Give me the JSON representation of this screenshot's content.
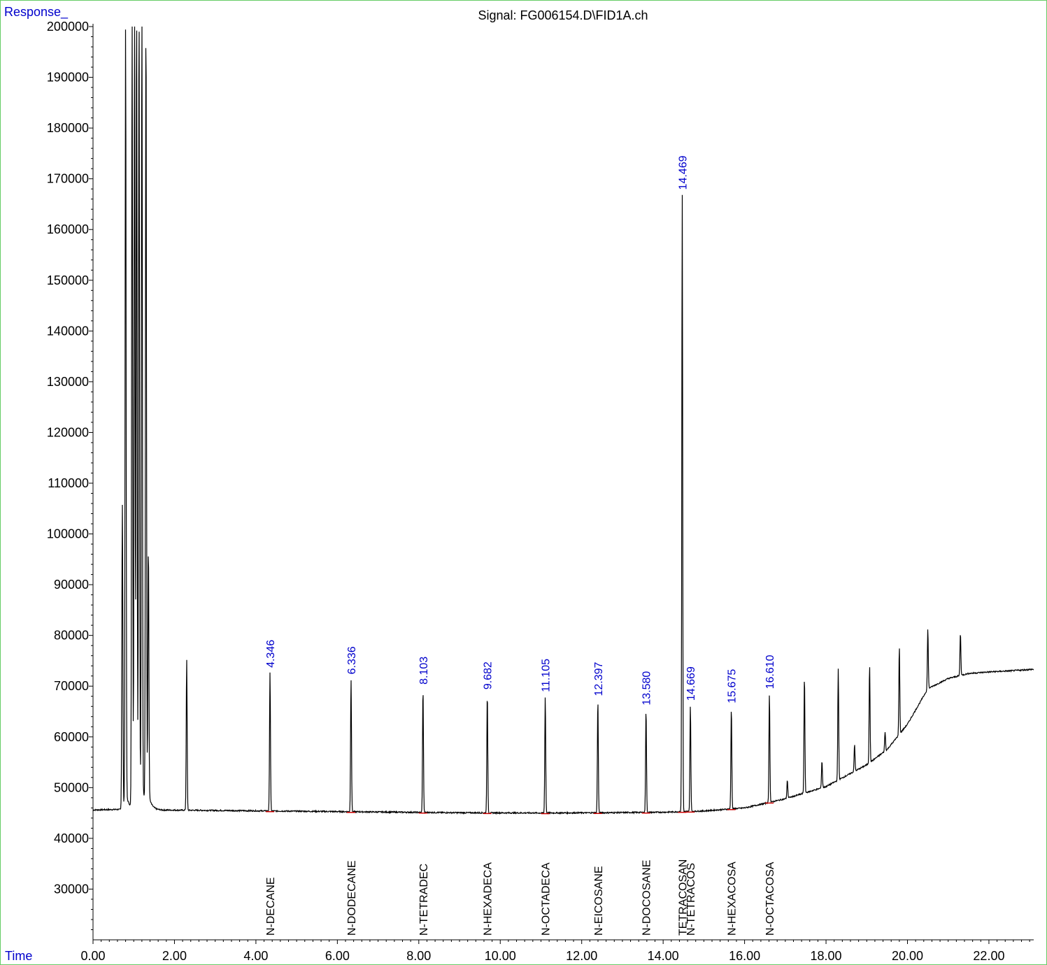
{
  "header": {
    "y_axis_label": "Response_",
    "x_axis_label": "Time",
    "title": "Signal: FG006154.D\\FID1A.ch"
  },
  "colors": {
    "trace": "#000000",
    "rt_label": "#0000cc",
    "axis_label": "#0000cc",
    "baseline_marker": "#cc0000",
    "frame": "#66cc66"
  },
  "chart_data": {
    "type": "line",
    "title": "Signal: FG006154.D\\FID1A.ch",
    "xlabel": "Time",
    "ylabel": "Response_",
    "xlim": [
      0,
      23.1
    ],
    "ylim": [
      20000,
      200000
    ],
    "x_ticks": [
      "0.00",
      "2.00",
      "4.00",
      "6.00",
      "8.00",
      "10.00",
      "12.00",
      "14.00",
      "16.00",
      "18.00",
      "20.00",
      "22.00"
    ],
    "y_ticks": [
      "30000",
      "40000",
      "50000",
      "60000",
      "70000",
      "80000",
      "90000",
      "100000",
      "110000",
      "120000",
      "130000",
      "140000",
      "150000",
      "160000",
      "170000",
      "180000",
      "190000",
      "200000"
    ],
    "grid": false,
    "baseline": [
      [
        0.0,
        45600
      ],
      [
        0.6,
        45700
      ],
      [
        1.5,
        45600
      ],
      [
        3.0,
        45500
      ],
      [
        5.0,
        45350
      ],
      [
        7.0,
        45200
      ],
      [
        9.0,
        45050
      ],
      [
        11.0,
        45000
      ],
      [
        12.5,
        45050
      ],
      [
        14.0,
        45150
      ],
      [
        15.0,
        45400
      ],
      [
        16.0,
        46000
      ],
      [
        17.0,
        47800
      ],
      [
        18.0,
        50200
      ],
      [
        19.0,
        54500
      ],
      [
        19.5,
        57500
      ],
      [
        20.0,
        62500
      ],
      [
        20.5,
        69500
      ],
      [
        21.0,
        71500
      ],
      [
        21.5,
        72500
      ],
      [
        22.0,
        72800
      ],
      [
        22.5,
        73000
      ],
      [
        23.05,
        73300
      ]
    ],
    "peaks": [
      {
        "rt": 0.72,
        "height": 105000
      },
      {
        "rt": 0.8,
        "height": 200000
      },
      {
        "rt": 0.96,
        "height": 200000
      },
      {
        "rt": 1.02,
        "height": 200000
      },
      {
        "rt": 1.07,
        "height": 200000
      },
      {
        "rt": 1.13,
        "height": 200000
      },
      {
        "rt": 1.2,
        "height": 200000
      },
      {
        "rt": 1.3,
        "height": 200000
      },
      {
        "rt": 1.36,
        "height": 95000
      },
      {
        "rt": 2.3,
        "height": 75300
      },
      {
        "rt": 4.346,
        "height": 72800,
        "rt_label": "4.346",
        "compound": "N-DECANE"
      },
      {
        "rt": 6.336,
        "height": 71500,
        "rt_label": "6.336",
        "compound": "N-DODECANE"
      },
      {
        "rt": 8.103,
        "height": 69500,
        "rt_label": "8.103",
        "compound": "N-TETRADEC"
      },
      {
        "rt": 9.682,
        "height": 68500,
        "rt_label": "9.682",
        "compound": "N-HEXADECA"
      },
      {
        "rt": 11.105,
        "height": 68000,
        "rt_label": "11.105",
        "compound": "N-OCTADECA"
      },
      {
        "rt": 12.397,
        "height": 67200,
        "rt_label": "12.397",
        "compound": "N-EICOSANE"
      },
      {
        "rt": 13.58,
        "height": 65400,
        "rt_label": "13.580",
        "compound": "N-DOCOSANE"
      },
      {
        "rt": 14.469,
        "height": 167000,
        "rt_label": "14.469",
        "compound": "TETRACOSAN"
      },
      {
        "rt": 14.669,
        "height": 66300,
        "rt_label": "14.669",
        "compound": "N-TETRACOS"
      },
      {
        "rt": 15.675,
        "height": 65800,
        "rt_label": "15.675",
        "compound": "N-HEXACOSA"
      },
      {
        "rt": 16.61,
        "height": 68600,
        "rt_label": "16.610",
        "compound": "N-OCTACOSA"
      },
      {
        "rt": 17.05,
        "height": 51500
      },
      {
        "rt": 17.47,
        "height": 72000
      },
      {
        "rt": 17.9,
        "height": 55300
      },
      {
        "rt": 18.3,
        "height": 73500
      },
      {
        "rt": 18.7,
        "height": 58500
      },
      {
        "rt": 19.07,
        "height": 74300
      },
      {
        "rt": 19.45,
        "height": 61000
      },
      {
        "rt": 19.8,
        "height": 77800
      },
      {
        "rt": 20.5,
        "height": 81300
      },
      {
        "rt": 21.3,
        "height": 80500
      }
    ]
  }
}
